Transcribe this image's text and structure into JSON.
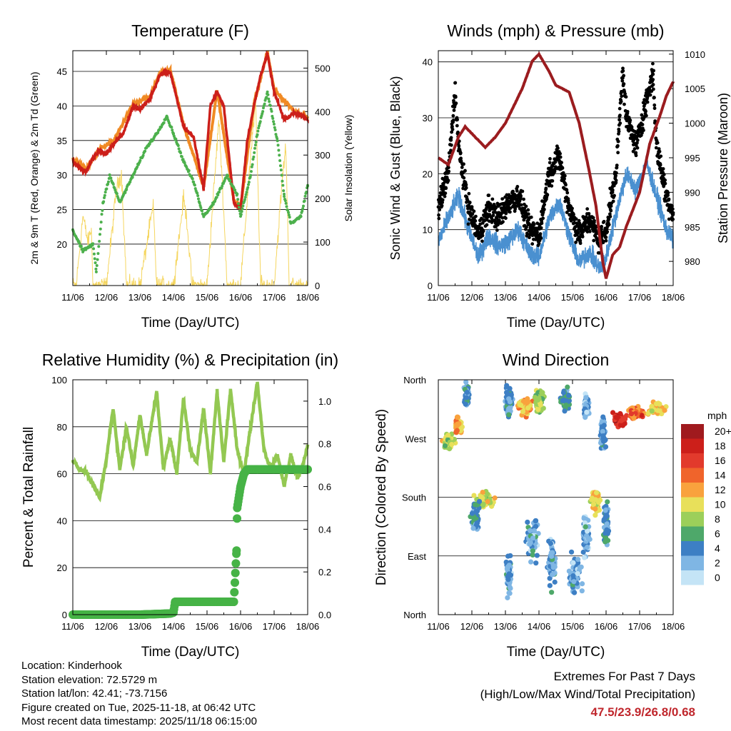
{
  "chart_data": [
    {
      "type": "line",
      "title": "Temperature (F)",
      "xlabel": "Time (Day/UTC)",
      "ylabel": "2m & 9m T (Red, Orange) & 2m Td (Green)",
      "ylabel_right": "Solar Insolation (Yellow)",
      "x_ticks": [
        "11/06",
        "12/06",
        "13/06",
        "14/06",
        "15/06",
        "16/06",
        "17/06",
        "18/06"
      ],
      "ylim": [
        14,
        48
      ],
      "y_ticks": [
        20,
        25,
        30,
        35,
        40,
        45
      ],
      "ylim_right": [
        0,
        540
      ],
      "y_ticks_right": [
        0,
        100,
        200,
        300,
        400,
        500
      ],
      "series": [
        {
          "name": "2m T",
          "color": "#cc1f1a",
          "x": [
            0,
            0.2,
            0.4,
            0.6,
            0.8,
            1.0,
            1.2,
            1.5,
            1.8,
            2.0,
            2.3,
            2.6,
            2.9,
            3.1,
            3.3,
            3.6,
            3.9,
            4.1,
            4.3,
            4.5,
            4.8,
            5.0,
            5.2,
            5.4,
            5.6,
            5.8,
            6.0,
            6.3,
            6.6,
            6.9,
            7.0
          ],
          "y": [
            32,
            31,
            30.5,
            32.5,
            33.5,
            33,
            34.5,
            36,
            40,
            39.5,
            41,
            44.5,
            45,
            41,
            37,
            35.5,
            28,
            40,
            42,
            40,
            26,
            25,
            35,
            40,
            44.5,
            47.5,
            42,
            38,
            39,
            38.5,
            38
          ]
        },
        {
          "name": "9m T",
          "color": "#f08a24",
          "x": [
            0,
            0.4,
            0.8,
            1.2,
            1.8,
            2.3,
            2.6,
            2.9,
            3.3,
            3.9,
            4.3,
            4.8,
            5.0,
            5.4,
            5.8,
            6.0,
            6.6,
            7.0
          ],
          "y": [
            32.3,
            30.8,
            33.8,
            34.8,
            40.3,
            41.3,
            44.8,
            45.3,
            37.3,
            28.3,
            42.3,
            26.3,
            25.3,
            40.3,
            47.8,
            42.3,
            39.3,
            38.3
          ]
        },
        {
          "name": "2m Td",
          "color": "#4cb04c",
          "x": [
            0,
            0.3,
            0.6,
            0.7,
            0.9,
            1.1,
            1.4,
            1.6,
            1.9,
            2.2,
            2.5,
            2.8,
            3.0,
            3.3,
            3.6,
            3.9,
            4.2,
            4.6,
            4.9,
            5.0,
            5.3,
            5.5,
            5.8,
            6.1,
            6.3,
            6.5,
            6.8,
            7.0
          ],
          "y": [
            22,
            19,
            20,
            16,
            26,
            30,
            26,
            28,
            31,
            34,
            36,
            38.5,
            36,
            32,
            29,
            24,
            26,
            30,
            27,
            24,
            30,
            36,
            42,
            35,
            27,
            23,
            24,
            28.5
          ]
        },
        {
          "name": "Solar Insolation",
          "color": "#f5d660",
          "axis": "right",
          "x": [
            0,
            0.1,
            0.3,
            0.45,
            0.55,
            0.6,
            1.0,
            1.3,
            1.45,
            1.6,
            2.0,
            2.3,
            2.4,
            2.5,
            3.0,
            3.3,
            3.4,
            3.55,
            4.0,
            4.35,
            4.45,
            4.6,
            5.0,
            5.3,
            5.45,
            5.6,
            6.0,
            6.25,
            6.35,
            6.45,
            7.0
          ],
          "y": [
            0,
            0,
            160,
            100,
            130,
            0,
            0,
            220,
            260,
            0,
            0,
            140,
            180,
            0,
            0,
            200,
            150,
            0,
            0,
            380,
            250,
            0,
            0,
            300,
            420,
            0,
            0,
            250,
            320,
            0,
            0
          ]
        }
      ]
    },
    {
      "type": "line",
      "title": "Winds (mph) & Pressure (mb)",
      "xlabel": "Time (Day/UTC)",
      "ylabel": "Sonic Wind & Gust (Blue, Black)",
      "ylabel_right": "Station Pressure (Maroon)",
      "x_ticks": [
        "11/06",
        "12/06",
        "13/06",
        "14/06",
        "15/06",
        "16/06",
        "17/06",
        "18/06"
      ],
      "ylim": [
        0,
        42
      ],
      "y_ticks": [
        0,
        10,
        20,
        30,
        40
      ],
      "ylim_right": [
        976.5,
        1010.5
      ],
      "y_ticks_right": [
        980,
        985,
        990,
        995,
        1000,
        1005,
        1010
      ],
      "series": [
        {
          "name": "Sonic Wind",
          "color": "#4a90d0",
          "x": [
            0,
            0.3,
            0.6,
            0.9,
            1.2,
            1.5,
            1.8,
            2.1,
            2.4,
            2.7,
            3.0,
            3.3,
            3.6,
            3.9,
            4.2,
            4.5,
            4.8,
            5.0,
            5.3,
            5.6,
            5.9,
            6.2,
            6.5,
            6.8,
            7.0
          ],
          "y": [
            8,
            12,
            16,
            10,
            5,
            9,
            7,
            8,
            10,
            6,
            5,
            12,
            15,
            9,
            4,
            6,
            3,
            5,
            13,
            20,
            17,
            22,
            16,
            10,
            8
          ]
        },
        {
          "name": "Gust",
          "color": "#000000",
          "x": [
            0,
            0.3,
            0.5,
            0.6,
            0.9,
            1.2,
            1.5,
            1.8,
            2.1,
            2.4,
            2.7,
            3.0,
            3.3,
            3.6,
            3.9,
            4.2,
            4.5,
            4.8,
            5.0,
            5.3,
            5.5,
            5.6,
            5.9,
            6.2,
            6.4,
            6.5,
            6.8,
            7.0
          ],
          "y": [
            14,
            20,
            35,
            25,
            14,
            9,
            14,
            12,
            15,
            16,
            10,
            9,
            20,
            23,
            14,
            9,
            12,
            8,
            10,
            20,
            39,
            30,
            25,
            33,
            38,
            25,
            16,
            13
          ]
        },
        {
          "name": "Station Pressure",
          "color": "#9b1c1f",
          "axis": "right",
          "x": [
            0,
            0.3,
            0.6,
            0.8,
            1.0,
            1.4,
            1.7,
            2.0,
            2.5,
            2.8,
            3.0,
            3.3,
            3.5,
            3.7,
            3.9,
            4.2,
            4.5,
            4.7,
            4.9,
            5.0,
            5.2,
            5.4,
            5.6,
            6.0,
            6.3,
            6.6,
            6.8,
            7.0
          ],
          "y": [
            995,
            994,
            998,
            999.5,
            998.5,
            996.5,
            998,
            1000,
            1005,
            1009,
            1010,
            1007.5,
            1005.5,
            1005,
            1004.5,
            1000,
            993,
            988,
            980,
            977.5,
            981,
            982,
            985,
            990,
            997,
            1001,
            1004,
            1006
          ]
        }
      ]
    },
    {
      "type": "line",
      "title": "Relative Humidity (%) & Precipitation (in)",
      "xlabel": "Time (Day/UTC)",
      "ylabel": "Percent & Total Rainfall",
      "x_ticks": [
        "11/06",
        "12/06",
        "13/06",
        "14/06",
        "15/06",
        "16/06",
        "17/06",
        "18/06"
      ],
      "ylim": [
        0,
        100
      ],
      "y_ticks": [
        0,
        20,
        40,
        60,
        80,
        100
      ],
      "ylim_right": [
        0,
        1.1
      ],
      "y_ticks_right": [
        0.0,
        0.2,
        0.4,
        0.6,
        0.8,
        1.0
      ],
      "series": [
        {
          "name": "Relative Humidity",
          "color": "#93c852",
          "x": [
            0,
            0.2,
            0.4,
            0.6,
            0.8,
            1.0,
            1.2,
            1.4,
            1.6,
            1.8,
            2.0,
            2.2,
            2.5,
            2.7,
            2.9,
            3.1,
            3.3,
            3.5,
            3.7,
            3.9,
            4.1,
            4.3,
            4.5,
            4.7,
            4.9,
            5.1,
            5.3,
            5.5,
            5.7,
            5.9,
            6.1,
            6.3,
            6.5,
            6.7,
            6.9,
            7.0
          ],
          "y": [
            66,
            62,
            61,
            55,
            50,
            66,
            88,
            62,
            80,
            63,
            85,
            68,
            95,
            62,
            75,
            60,
            92,
            70,
            65,
            88,
            60,
            95,
            65,
            96,
            70,
            60,
            80,
            99,
            70,
            62,
            68,
            55,
            68,
            58,
            66,
            72
          ]
        },
        {
          "name": "Total Precipitation",
          "color": "#46b346",
          "axis": "right",
          "x": [
            0,
            2.0,
            2.9,
            3.0,
            3.05,
            3.5,
            4.0,
            4.8,
            4.88,
            4.9,
            5.0,
            5.1,
            5.2,
            5.5,
            6.0,
            7.0
          ],
          "y": [
            0.0,
            0.0,
            0.005,
            0.01,
            0.06,
            0.06,
            0.06,
            0.06,
            0.3,
            0.5,
            0.6,
            0.66,
            0.68,
            0.68,
            0.68,
            0.68
          ]
        }
      ]
    },
    {
      "type": "scatter",
      "title": "Wind Direction",
      "xlabel": "Time (Day/UTC)",
      "ylabel": "Direction (Colored By Speed)",
      "x_ticks": [
        "11/06",
        "12/06",
        "13/06",
        "14/06",
        "15/06",
        "16/06",
        "17/06",
        "18/06"
      ],
      "y_ticks": [
        "North",
        "West",
        "South",
        "East",
        "North"
      ],
      "y_tick_values": [
        360,
        270,
        180,
        90,
        0
      ],
      "ylim": [
        0,
        360
      ],
      "legend_title": "mph",
      "legend_labels": [
        "20+",
        "18",
        "16",
        "14",
        "12",
        "10",
        "8",
        "6",
        "4",
        "2",
        "0"
      ],
      "legend_colors": [
        "#a01a1e",
        "#cc1f1a",
        "#e23a2c",
        "#f0642b",
        "#f9a23d",
        "#e8e05a",
        "#9ccf5a",
        "#4ea86a",
        "#3d7fc4",
        "#7fb6e4",
        "#c4e4f6"
      ],
      "clusters": [
        {
          "x": 0.3,
          "dir": 265,
          "spread_t": 0.25,
          "spread_d": 15,
          "speed": 9
        },
        {
          "x": 0.6,
          "dir": 290,
          "spread_t": 0.15,
          "spread_d": 20,
          "speed": 12
        },
        {
          "x": 0.85,
          "dir": 335,
          "spread_t": 0.1,
          "spread_d": 25,
          "speed": 4
        },
        {
          "x": 1.4,
          "dir": 175,
          "spread_t": 0.4,
          "spread_d": 18,
          "speed": 9
        },
        {
          "x": 1.1,
          "dir": 150,
          "spread_t": 0.15,
          "spread_d": 30,
          "speed": 4
        },
        {
          "x": 2.1,
          "dir": 330,
          "spread_t": 0.15,
          "spread_d": 30,
          "speed": 3
        },
        {
          "x": 2.1,
          "dir": 60,
          "spread_t": 0.1,
          "spread_d": 40,
          "speed": 3
        },
        {
          "x": 2.6,
          "dir": 320,
          "spread_t": 0.3,
          "spread_d": 20,
          "speed": 12
        },
        {
          "x": 3.0,
          "dir": 330,
          "spread_t": 0.2,
          "spread_d": 25,
          "speed": 8
        },
        {
          "x": 2.8,
          "dir": 120,
          "spread_t": 0.25,
          "spread_d": 50,
          "speed": 3
        },
        {
          "x": 3.4,
          "dir": 80,
          "spread_t": 0.2,
          "spread_d": 60,
          "speed": 3
        },
        {
          "x": 3.8,
          "dir": 330,
          "spread_t": 0.2,
          "spread_d": 25,
          "speed": 5
        },
        {
          "x": 4.1,
          "dir": 60,
          "spread_t": 0.25,
          "spread_d": 40,
          "speed": 3
        },
        {
          "x": 4.4,
          "dir": 120,
          "spread_t": 0.15,
          "spread_d": 40,
          "speed": 2
        },
        {
          "x": 4.4,
          "dir": 320,
          "spread_t": 0.1,
          "spread_d": 25,
          "speed": 2
        },
        {
          "x": 4.7,
          "dir": 175,
          "spread_t": 0.2,
          "spread_d": 25,
          "speed": 10
        },
        {
          "x": 4.9,
          "dir": 280,
          "spread_t": 0.1,
          "spread_d": 40,
          "speed": 3
        },
        {
          "x": 5.0,
          "dir": 140,
          "spread_t": 0.1,
          "spread_d": 40,
          "speed": 4
        },
        {
          "x": 5.4,
          "dir": 300,
          "spread_t": 0.3,
          "spread_d": 15,
          "speed": 17
        },
        {
          "x": 5.9,
          "dir": 310,
          "spread_t": 0.3,
          "spread_d": 12,
          "speed": 14
        },
        {
          "x": 6.5,
          "dir": 315,
          "spread_t": 0.4,
          "spread_d": 12,
          "speed": 11
        }
      ]
    }
  ],
  "info": {
    "location": "Location: Kinderhook",
    "elevation": "Station elevation: 72.5729 m",
    "latlon": "Station lat/lon: 42.41; -73.7156",
    "created": "Figure created on Tue, 2025-11-18, at 06:42 UTC",
    "timestamp": "Most recent data timestamp: 2025/11/18 06:15:00"
  },
  "extremes": {
    "title": "Extremes For Past 7 Days",
    "subtitle": "(High/Low/Max Wind/Total Precipitation)",
    "values": "47.5/23.9/26.8/0.68"
  },
  "colors": {
    "gridline": "#000000",
    "background": "#ffffff"
  }
}
